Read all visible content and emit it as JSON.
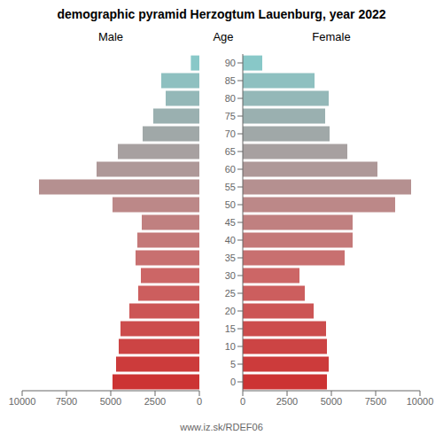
{
  "chart_data": {
    "type": "bar",
    "orientation": "horizontal",
    "title": "demographic pyramid Herzogtum Lauenburg, year 2022",
    "ylabel": "Age",
    "annotations": [
      "www.iz.sk/RDEF06"
    ],
    "categories": [
      0,
      5,
      10,
      15,
      20,
      25,
      30,
      35,
      40,
      45,
      50,
      55,
      60,
      65,
      70,
      75,
      80,
      85,
      90
    ],
    "series": [
      {
        "name": "Male",
        "values": [
          4900,
          4700,
          4550,
          4450,
          3950,
          3450,
          3300,
          3600,
          3500,
          3250,
          4900,
          9050,
          5800,
          4600,
          3200,
          2600,
          1900,
          2150,
          480
        ]
      },
      {
        "name": "Female",
        "values": [
          4750,
          4850,
          4750,
          4700,
          4000,
          3500,
          3200,
          5750,
          6200,
          6200,
          8600,
          9500,
          7600,
          5900,
          4900,
          4650,
          4850,
          4050,
          1100
        ]
      }
    ],
    "colors": [
      "#cc3333",
      "#cc3b3b",
      "#cc4444",
      "#cc4d4d",
      "#cc5555",
      "#cc5e5e",
      "#cc6666",
      "#c87070",
      "#c47878",
      "#c08080",
      "#bc8888",
      "#b59090",
      "#ae9898",
      "#a7a0a0",
      "#a0a8a8",
      "#9ab0b0",
      "#94b8b8",
      "#8ec0c0",
      "#88c8c8"
    ],
    "xlim": [
      0,
      10000
    ],
    "xticks": [
      0,
      2500,
      5000,
      7500,
      10000
    ],
    "grid": false
  }
}
